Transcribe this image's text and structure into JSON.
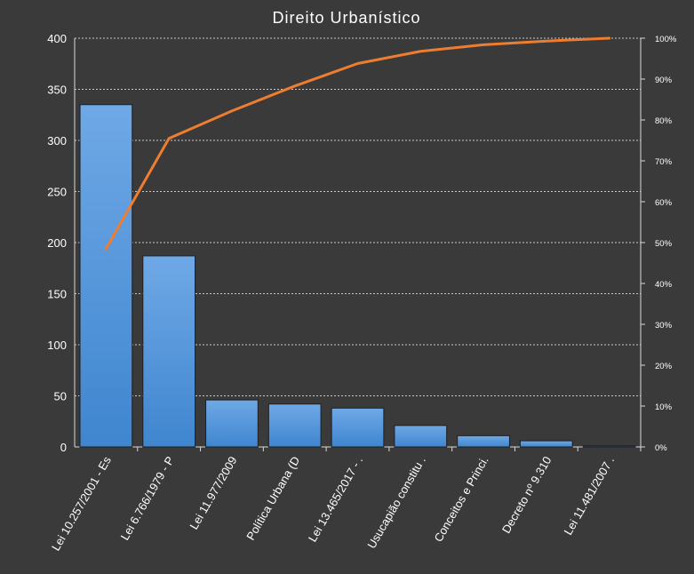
{
  "colors": {
    "background": "#3a3a3a",
    "bar_top": "#6fa8e6",
    "bar_bottom": "#3f86cf",
    "bar_stroke": "#1f1f1f",
    "line": "#ed7d31",
    "grid": "#d9d9d9",
    "axis_text": "#ffffff",
    "title_text": "#ffffff"
  },
  "chart_data": {
    "type": "bar",
    "title": "Direito Urbanístico",
    "xlabel": "",
    "ylabel": "",
    "categories": [
      "Lei 10.257/2001 - Es",
      "Lei 6.766/1979 - P",
      "Lei 11.977/2009",
      "Política Urbana (D",
      "Lei 13.465/2017 - .",
      "Usucapião constitu .",
      "Conceitos e Princi.",
      "Decreto nº 9.310",
      "Lei 11.481/2007 ."
    ],
    "series": [
      {
        "type": "bar",
        "values": [
          335,
          187,
          46,
          42,
          38,
          21,
          11,
          6,
          1
        ]
      },
      {
        "type": "line",
        "axis": "secondary",
        "values": [
          48.5,
          75.5,
          82.2,
          88.3,
          93.8,
          96.8,
          98.4,
          99.3,
          100
        ]
      }
    ],
    "ylim": [
      0,
      400
    ],
    "yticks": [
      0,
      50,
      100,
      150,
      200,
      250,
      300,
      350,
      400
    ],
    "y2lim": [
      0,
      100
    ],
    "y2ticks": [
      "0%",
      "10%",
      "20%",
      "30%",
      "40%",
      "50%",
      "60%",
      "70%",
      "80%",
      "90%",
      "100%"
    ],
    "grid": true
  }
}
